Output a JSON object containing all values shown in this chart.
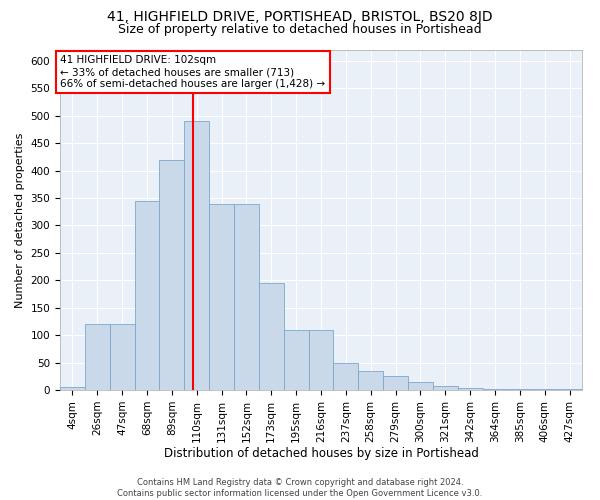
{
  "title": "41, HIGHFIELD DRIVE, PORTISHEAD, BRISTOL, BS20 8JD",
  "subtitle": "Size of property relative to detached houses in Portishead",
  "xlabel": "Distribution of detached houses by size in Portishead",
  "ylabel": "Number of detached properties",
  "footer_line1": "Contains HM Land Registry data © Crown copyright and database right 2024.",
  "footer_line2": "Contains public sector information licensed under the Open Government Licence v3.0.",
  "bar_labels": [
    "4sqm",
    "26sqm",
    "47sqm",
    "68sqm",
    "89sqm",
    "110sqm",
    "131sqm",
    "152sqm",
    "173sqm",
    "195sqm",
    "216sqm",
    "237sqm",
    "258sqm",
    "279sqm",
    "300sqm",
    "321sqm",
    "342sqm",
    "364sqm",
    "385sqm",
    "406sqm",
    "427sqm"
  ],
  "bar_values": [
    5,
    120,
    120,
    345,
    420,
    490,
    340,
    340,
    195,
    110,
    110,
    50,
    35,
    25,
    15,
    8,
    3,
    2,
    1,
    1,
    1
  ],
  "bar_color": "#c9d9ea",
  "bar_edge_color": "#7aa8cc",
  "background_color": "#eaf0f8",
  "grid_color": "#ffffff",
  "red_line_x": 4.85,
  "annotation_text_line1": "41 HIGHFIELD DRIVE: 102sqm",
  "annotation_text_line2": "← 33% of detached houses are smaller (713)",
  "annotation_text_line3": "66% of semi-detached houses are larger (1,428) →",
  "annotation_box_color": "#cc0000",
  "ylim": [
    0,
    620
  ],
  "yticks": [
    0,
    50,
    100,
    150,
    200,
    250,
    300,
    350,
    400,
    450,
    500,
    550,
    600
  ],
  "title_fontsize": 10,
  "subtitle_fontsize": 9,
  "tick_fontsize": 7.5,
  "ylabel_fontsize": 8,
  "xlabel_fontsize": 8.5
}
